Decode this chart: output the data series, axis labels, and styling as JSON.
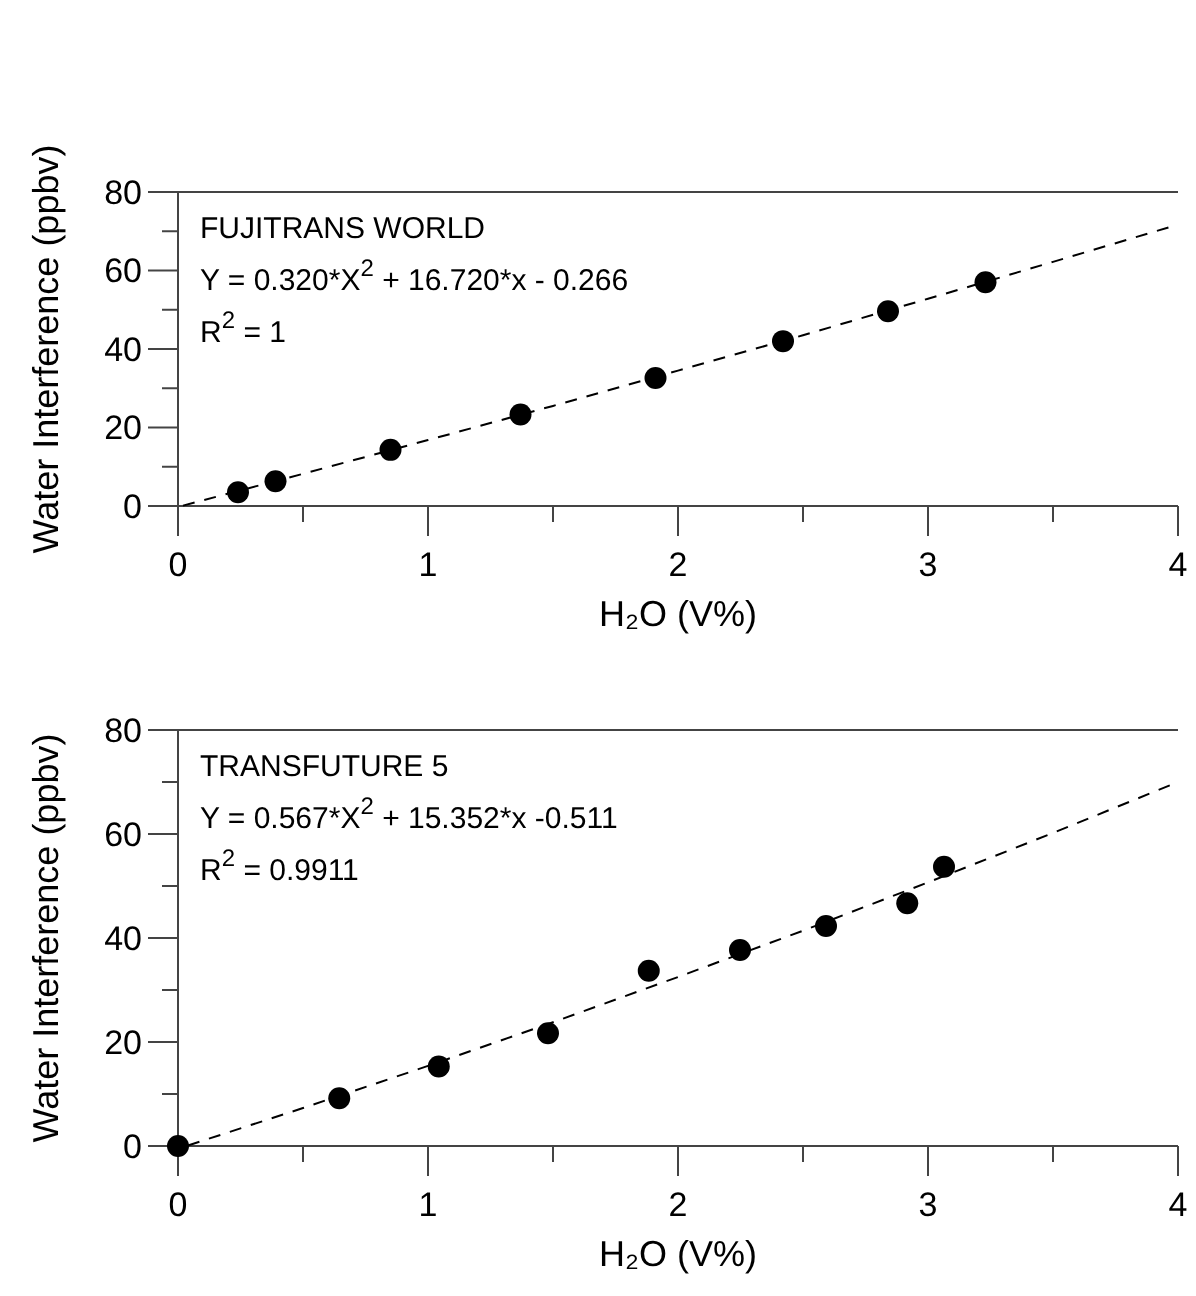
{
  "chart_data": [
    {
      "type": "scatter",
      "xlabel": "H₂O (V%)",
      "ylabel": "Water Interference (ppbv)",
      "annotations": [
        "FUJITRANS WORLD",
        "Y = 0.320*X$^{2}$ + 16.720*x - 0.266",
        "R$^{2}$ = 1"
      ],
      "xlim": [
        0,
        4
      ],
      "ylim": [
        0,
        80
      ],
      "xticks": [
        0,
        {
          "value": 0.5,
          "label": null
        },
        1,
        {
          "value": 1.5,
          "label": null
        },
        2,
        {
          "value": 2.5,
          "label": null
        },
        3,
        {
          "value": 3.5,
          "label": null
        },
        4
      ],
      "yticks": [
        0,
        {
          "value": 10,
          "label": null
        },
        20,
        {
          "value": 30,
          "label": null
        },
        40,
        {
          "value": 50,
          "label": null
        },
        60,
        {
          "value": 70,
          "label": null
        },
        80
      ],
      "grid": false,
      "marker": "circle",
      "series": [
        {
          "type": "scatter",
          "color": "#000000",
          "x": [
            0.24,
            0.39,
            0.85,
            1.37,
            1.91,
            2.42,
            2.84,
            3.23
          ],
          "values": [
            3.5,
            6.3,
            14.3,
            23.3,
            32.6,
            42,
            49.6,
            57
          ]
        },
        {
          "type": "line",
          "color": "#000000",
          "line_style": "dashed",
          "marker": "none",
          "x": [
            0.02,
            0.5,
            1,
            1.5,
            2,
            2.5,
            3,
            3.5,
            4
          ],
          "values": [
            0.1,
            8.2,
            16.8,
            25.5,
            34.5,
            43.5,
            52.8,
            62.2,
            71.7
          ]
        }
      ]
    },
    {
      "type": "scatter",
      "xlabel": "H₂O (V%)",
      "ylabel": "Water Interference (ppbv)",
      "annotations": [
        "TRANSFUTURE 5",
        "Y = 0.567*X$^{2}$ + 15.352*x -0.511",
        "R$^{2}$ = 0.9911"
      ],
      "xlim": [
        0,
        4
      ],
      "ylim": [
        0,
        80
      ],
      "xticks": [
        0,
        {
          "value": 0.5,
          "label": null
        },
        1,
        {
          "value": 1.5,
          "label": null
        },
        2,
        {
          "value": 2.5,
          "label": null
        },
        3,
        {
          "value": 3.5,
          "label": null
        },
        4
      ],
      "yticks": [
        0,
        {
          "value": 10,
          "label": null
        },
        20,
        {
          "value": 30,
          "label": null
        },
        40,
        {
          "value": 50,
          "label": null
        },
        60,
        {
          "value": 70,
          "label": null
        },
        80
      ],
      "grid": false,
      "marker": "circle",
      "series": [
        {
          "type": "scatter",
          "color": "#000000",
          "x": [
            0,
            0.645,
            1.043,
            1.48,
            1.883,
            2.248,
            2.592,
            2.917,
            3.064
          ],
          "values": [
            0,
            9.2,
            15.3,
            21.7,
            33.7,
            37.7,
            42.3,
            46.7,
            53.7
          ]
        },
        {
          "type": "line",
          "color": "#000000",
          "line_style": "dashed",
          "marker": "none",
          "x": [
            0.04,
            0.5,
            1,
            1.5,
            2,
            2.5,
            3,
            3.5,
            4
          ],
          "values": [
            0.1,
            7.3,
            15.4,
            23.8,
            32.5,
            41.4,
            50.7,
            60.2,
            70
          ]
        }
      ]
    }
  ]
}
